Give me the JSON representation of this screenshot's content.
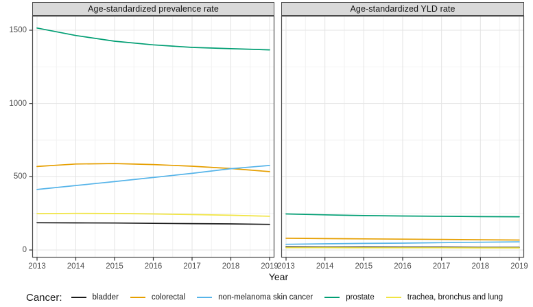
{
  "figure": {
    "xlabel": "Year",
    "y_ticks": [
      0,
      500,
      1000,
      1500
    ],
    "years": [
      2013,
      2014,
      2015,
      2016,
      2017,
      2018,
      2019
    ]
  },
  "chart_data": [
    {
      "type": "line",
      "title": "Age-standardized prevalence rate",
      "xlabel": "Year",
      "ylabel": "",
      "x": [
        2013,
        2014,
        2015,
        2016,
        2017,
        2018,
        2019
      ],
      "ylim": [
        0,
        1500
      ],
      "grid": true,
      "series": [
        {
          "name": "bladder",
          "color": "#1A1A1A",
          "values": [
            186,
            185,
            184,
            182,
            180,
            178,
            175
          ]
        },
        {
          "name": "colorectal",
          "color": "#E69F00",
          "values": [
            570,
            587,
            590,
            583,
            572,
            556,
            535
          ]
        },
        {
          "name": "non-melanoma skin cancer",
          "color": "#56B4E9",
          "values": [
            413,
            440,
            467,
            495,
            523,
            555,
            577
          ]
        },
        {
          "name": "prostate",
          "color": "#009E73",
          "values": [
            1515,
            1464,
            1425,
            1400,
            1383,
            1374,
            1366
          ]
        },
        {
          "name": "trachea, bronchus and lung",
          "color": "#F0E442",
          "values": [
            248,
            250,
            249,
            246,
            242,
            237,
            230
          ]
        }
      ]
    },
    {
      "type": "line",
      "title": "Age-standardized YLD rate",
      "xlabel": "Year",
      "ylabel": "",
      "x": [
        2013,
        2014,
        2015,
        2016,
        2017,
        2018,
        2019
      ],
      "ylim": [
        0,
        1500
      ],
      "grid": true,
      "series": [
        {
          "name": "bladder",
          "color": "#1A1A1A",
          "values": [
            21,
            20,
            20,
            19,
            19,
            18,
            18
          ]
        },
        {
          "name": "colorectal",
          "color": "#E69F00",
          "values": [
            80,
            78,
            76,
            74,
            72,
            70,
            68
          ]
        },
        {
          "name": "non-melanoma skin cancer",
          "color": "#56B4E9",
          "values": [
            39,
            42,
            45,
            47,
            50,
            53,
            56
          ]
        },
        {
          "name": "prostate",
          "color": "#009E73",
          "values": [
            246,
            240,
            235,
            232,
            230,
            228,
            227
          ]
        },
        {
          "name": "trachea, bronchus and lung",
          "color": "#F0E442",
          "values": [
            16,
            16,
            15,
            15,
            15,
            14,
            14
          ]
        }
      ]
    }
  ],
  "legend": {
    "title": "Cancer:",
    "position": "bottom",
    "items": [
      {
        "label": "bladder",
        "color": "#1A1A1A"
      },
      {
        "label": "colorectal",
        "color": "#E69F00"
      },
      {
        "label": "non-melanoma skin cancer",
        "color": "#56B4E9"
      },
      {
        "label": "prostate",
        "color": "#009E73"
      },
      {
        "label": "trachea, bronchus and lung",
        "color": "#F0E442"
      }
    ]
  },
  "style": {
    "strip_background": "#D9D9D9",
    "panel_border": "#4a4a4a",
    "grid_major": "#e3e3e3",
    "grid_minor": "#f2f2f2",
    "tick_color": "#333333",
    "tick_label_color": "#4d4d4d"
  }
}
